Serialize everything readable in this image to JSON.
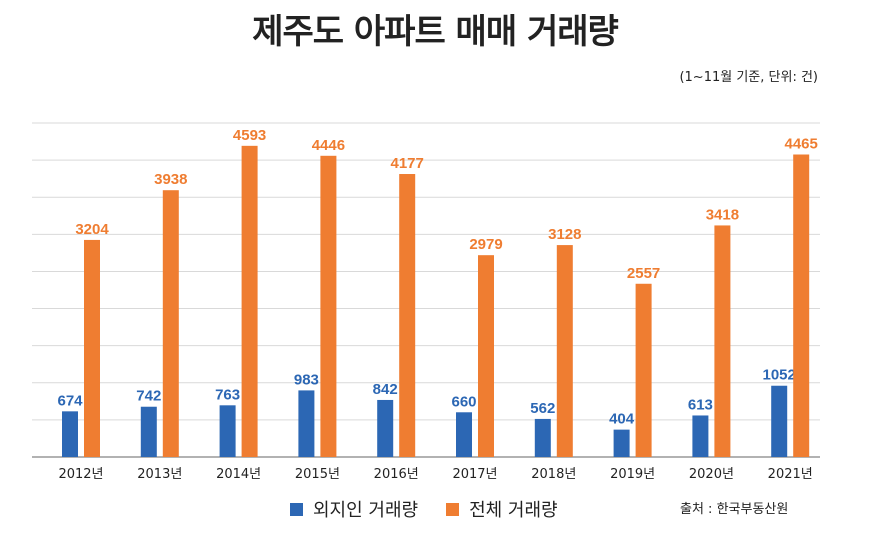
{
  "chart_data": {
    "type": "bar",
    "title": "제주도 아파트 매매 거래량",
    "subtitle": "(1~11월 기준, 단위: 건)",
    "categories": [
      "2012년",
      "2013년",
      "2014년",
      "2015년",
      "2016년",
      "2017년",
      "2018년",
      "2019년",
      "2020년",
      "2021년"
    ],
    "series": [
      {
        "name": "외지인 거래량",
        "color": "#2c67b4",
        "values": [
          674,
          742,
          763,
          983,
          842,
          660,
          562,
          404,
          613,
          1052
        ]
      },
      {
        "name": "전체 거래량",
        "color": "#ef7d31",
        "values": [
          3204,
          3938,
          4593,
          4446,
          4177,
          2979,
          3128,
          2557,
          3418,
          4465
        ]
      }
    ],
    "ylim": [
      0,
      4930
    ],
    "grid": true,
    "legend": "bottom",
    "source": "출처 : 한국부동산원"
  }
}
